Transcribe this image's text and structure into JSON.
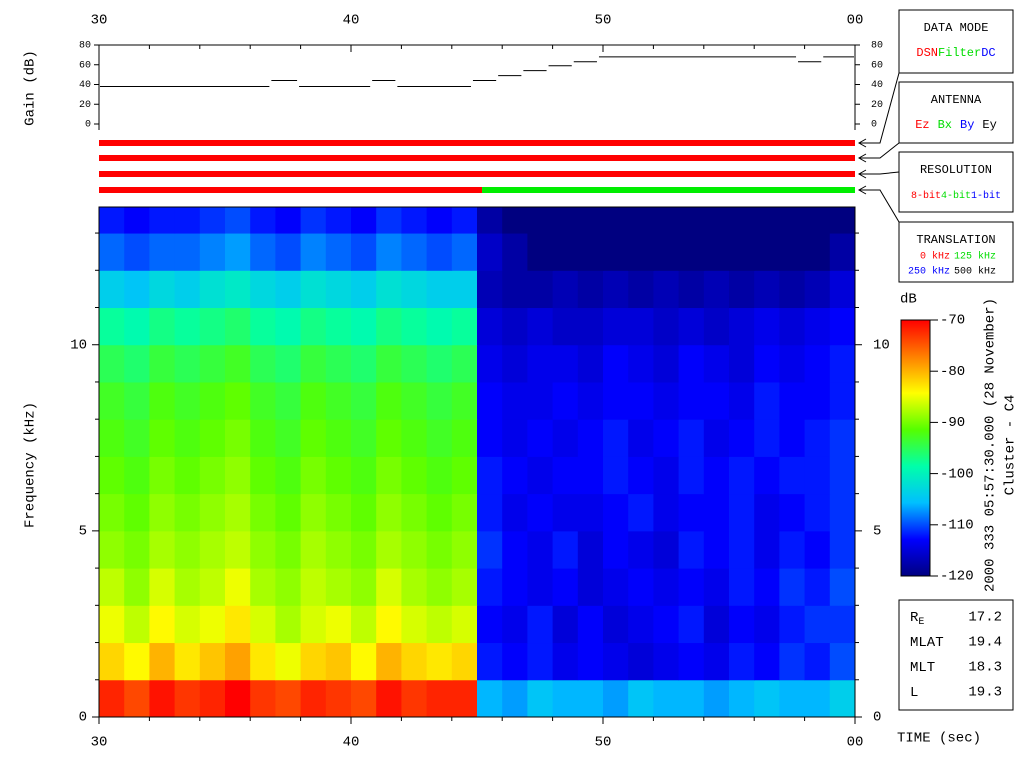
{
  "chart_data": [
    {
      "type": "step",
      "y_label": "Gain (dB)",
      "xlim": [
        30,
        60
      ],
      "xticks": [
        30,
        40,
        50,
        {
          "value": 60,
          "label": "00"
        }
      ],
      "xminor_ticks": [
        32,
        34,
        36,
        38,
        42,
        44,
        46,
        48,
        52,
        54,
        56,
        58
      ],
      "ylim": [
        0,
        80
      ],
      "yticks": [
        0,
        20,
        40,
        60,
        80
      ],
      "color": "#000000",
      "x": [
        30,
        36.8,
        37.9,
        40.8,
        41.8,
        44.8,
        45.8,
        46.8,
        47.8,
        48.8,
        49.8,
        57.7,
        58.7
      ],
      "values": [
        38,
        44,
        38,
        44,
        38,
        44,
        49,
        54,
        59,
        63,
        68,
        63,
        68
      ]
    },
    {
      "type": "timeline",
      "xlim": [
        30,
        60
      ],
      "rows": [
        {
          "title": "DATA MODE",
          "options": [
            {
              "label": "DSN",
              "color": "#ff0000"
            },
            {
              "label": "Filter",
              "color": "#00dd00"
            },
            {
              "label": "DC",
              "color": "#0000ff"
            }
          ],
          "segments": [
            {
              "start": 30,
              "end": 60,
              "color": "#ff0000"
            }
          ]
        },
        {
          "title": "ANTENNA",
          "options": [
            {
              "label": "Ez",
              "color": "#ff0000"
            },
            {
              "label": "Bx",
              "color": "#00dd00"
            },
            {
              "label": "By",
              "color": "#0000ff"
            },
            {
              "label": "Ey",
              "color": "#000000"
            }
          ],
          "segments": [
            {
              "start": 30,
              "end": 60,
              "color": "#ff0000"
            }
          ]
        },
        {
          "title": "RESOLUTION",
          "options": [
            {
              "label": "8-bit",
              "color": "#ff0000"
            },
            {
              "label": "4-bit",
              "color": "#00dd00"
            },
            {
              "label": "1-bit",
              "color": "#0000ff"
            }
          ],
          "segments": [
            {
              "start": 30,
              "end": 60,
              "color": "#ff0000"
            }
          ]
        },
        {
          "title": "TRANSLATION",
          "options": [
            {
              "label": "0 kHz",
              "color": "#ff0000"
            },
            {
              "label": "125 kHz",
              "color": "#00dd00"
            },
            {
              "label": "250 kHz",
              "color": "#0000ff"
            },
            {
              "label": "500 kHz",
              "color": "#000000"
            }
          ],
          "segments": [
            {
              "start": 30,
              "end": 45.2,
              "color": "#ff0000"
            },
            {
              "start": 45.2,
              "end": 60,
              "color": "#00ee00"
            }
          ]
        }
      ]
    },
    {
      "type": "heatmap",
      "x_label": "TIME (sec)",
      "y_label": "Frequency (kHz)",
      "xlim": [
        30,
        60
      ],
      "xticks": [
        30,
        40,
        50,
        {
          "value": 60,
          "label": "00"
        }
      ],
      "xminor_ticks": [
        32,
        34,
        36,
        38,
        42,
        44,
        46,
        48,
        52,
        54,
        56,
        58
      ],
      "ylim": [
        0,
        13.7
      ],
      "yticks": [
        0,
        5,
        10
      ],
      "yminor_ticks": [
        1,
        2,
        3,
        4,
        6,
        7,
        8,
        9,
        11,
        12,
        13
      ],
      "x_bins": [
        30,
        31,
        32,
        33,
        34,
        35,
        36,
        37,
        38,
        39,
        40,
        41,
        42,
        43,
        44,
        45,
        46,
        47,
        48,
        49,
        50,
        51,
        52,
        53,
        54,
        55,
        56,
        57,
        58,
        59,
        60
      ],
      "y_bins": [
        0,
        1,
        2,
        3,
        4,
        5,
        6,
        7,
        8,
        9,
        10,
        11,
        12,
        13,
        13.7
      ],
      "values": [
        [
          -72,
          -74,
          -71,
          -73,
          -72,
          -70,
          -73,
          -74,
          -72,
          -73,
          -74,
          -71,
          -73,
          -72,
          -72,
          -106,
          -107,
          -105,
          -106,
          -106,
          -107,
          -105,
          -106,
          -106,
          -107,
          -106,
          -105,
          -106,
          -106,
          -104
        ],
        [
          -82,
          -84,
          -80,
          -83,
          -81,
          -79,
          -83,
          -85,
          -82,
          -81,
          -84,
          -80,
          -82,
          -83,
          -82,
          -112,
          -113,
          -112,
          -114,
          -113,
          -114,
          -115,
          -114,
          -113,
          -114,
          -112,
          -113,
          -111,
          -112,
          -110
        ],
        [
          -85,
          -87,
          -84,
          -86,
          -85,
          -83,
          -86,
          -88,
          -86,
          -85,
          -87,
          -84,
          -86,
          -87,
          -86,
          -113,
          -114,
          -112,
          -115,
          -113,
          -115,
          -114,
          -113,
          -112,
          -115,
          -113,
          -114,
          -112,
          -111,
          -111
        ],
        [
          -87,
          -89,
          -86,
          -88,
          -87,
          -85,
          -88,
          -89,
          -87,
          -88,
          -89,
          -86,
          -88,
          -89,
          -88,
          -112,
          -113,
          -114,
          -113,
          -115,
          -114,
          -113,
          -114,
          -113,
          -114,
          -112,
          -113,
          -111,
          -112,
          -110
        ],
        [
          -89,
          -90,
          -88,
          -89,
          -88,
          -87,
          -89,
          -90,
          -88,
          -89,
          -90,
          -88,
          -89,
          -90,
          -89,
          -111,
          -113,
          -114,
          -112,
          -115,
          -113,
          -114,
          -115,
          -112,
          -113,
          -112,
          -114,
          -112,
          -113,
          -111
        ],
        [
          -90,
          -91,
          -89,
          -90,
          -89,
          -88,
          -90,
          -91,
          -89,
          -90,
          -91,
          -89,
          -90,
          -91,
          -90,
          -112,
          -114,
          -113,
          -114,
          -114,
          -113,
          -112,
          -114,
          -113,
          -113,
          -112,
          -114,
          -113,
          -112,
          -111
        ],
        [
          -91,
          -92,
          -90,
          -91,
          -90,
          -89,
          -91,
          -92,
          -90,
          -91,
          -92,
          -90,
          -91,
          -92,
          -91,
          -112,
          -113,
          -114,
          -113,
          -113,
          -112,
          -113,
          -114,
          -112,
          -113,
          -112,
          -113,
          -112,
          -112,
          -111
        ],
        [
          -92,
          -93,
          -91,
          -92,
          -91,
          -90,
          -92,
          -93,
          -91,
          -92,
          -93,
          -91,
          -92,
          -93,
          -92,
          -113,
          -114,
          -113,
          -114,
          -113,
          -112,
          -114,
          -113,
          -112,
          -114,
          -113,
          -112,
          -113,
          -112,
          -111
        ],
        [
          -93,
          -94,
          -92,
          -93,
          -92,
          -91,
          -93,
          -94,
          -92,
          -93,
          -94,
          -92,
          -93,
          -94,
          -93,
          -113,
          -114,
          -114,
          -113,
          -114,
          -113,
          -113,
          -114,
          -113,
          -113,
          -114,
          -112,
          -113,
          -113,
          -112
        ],
        [
          -95,
          -96,
          -94,
          -95,
          -94,
          -93,
          -95,
          -96,
          -94,
          -95,
          -96,
          -94,
          -95,
          -96,
          -95,
          -114,
          -115,
          -114,
          -114,
          -115,
          -113,
          -114,
          -115,
          -113,
          -114,
          -115,
          -113,
          -114,
          -113,
          -112
        ],
        [
          -98,
          -99,
          -97,
          -98,
          -97,
          -96,
          -98,
          -99,
          -97,
          -98,
          -99,
          -97,
          -98,
          -99,
          -98,
          -115,
          -116,
          -115,
          -116,
          -116,
          -115,
          -115,
          -116,
          -115,
          -116,
          -115,
          -114,
          -115,
          -114,
          -113
        ],
        [
          -104,
          -105,
          -103,
          -104,
          -102,
          -101,
          -103,
          -104,
          -102,
          -103,
          -104,
          -102,
          -103,
          -104,
          -104,
          -117,
          -118,
          -118,
          -117,
          -118,
          -117,
          -118,
          -117,
          -118,
          -117,
          -118,
          -117,
          -118,
          -117,
          -115
        ],
        [
          -109,
          -110,
          -109,
          -109,
          -108,
          -107,
          -109,
          -110,
          -108,
          -109,
          -110,
          -108,
          -109,
          -110,
          -109,
          -116,
          -118,
          -120,
          -120,
          -120,
          -120,
          -120,
          -120,
          -120,
          -120,
          -120,
          -120,
          -120,
          -120,
          -118
        ],
        [
          -112,
          -113,
          -112,
          -112,
          -111,
          -110,
          -112,
          -113,
          -111,
          -112,
          -113,
          -111,
          -112,
          -113,
          -112,
          -118,
          -120,
          -120,
          -120,
          -120,
          -120,
          -120,
          -120,
          -120,
          -120,
          -120,
          -120,
          -120,
          -120,
          -120
        ]
      ],
      "colorbar": {
        "label": "dB",
        "clim": [
          -120,
          -70
        ],
        "ticks": [
          -70,
          -80,
          -90,
          -100,
          -110,
          -120
        ],
        "colormap": [
          "#000080",
          "#0000ff",
          "#00bfff",
          "#00ffaa",
          "#55ff00",
          "#ffff00",
          "#ff8000",
          "#ff0000"
        ]
      }
    }
  ],
  "header": {
    "date": "2000 333 05:57:30.000 (28 November)",
    "spacecraft": "Cluster - C4"
  },
  "orbit": [
    {
      "label": "R",
      "sub": "E",
      "value": 17.2
    },
    {
      "label": "MLAT",
      "value": 19.4
    },
    {
      "label": "MLT",
      "value": 18.3
    },
    {
      "label": "L",
      "value": 19.3
    }
  ]
}
